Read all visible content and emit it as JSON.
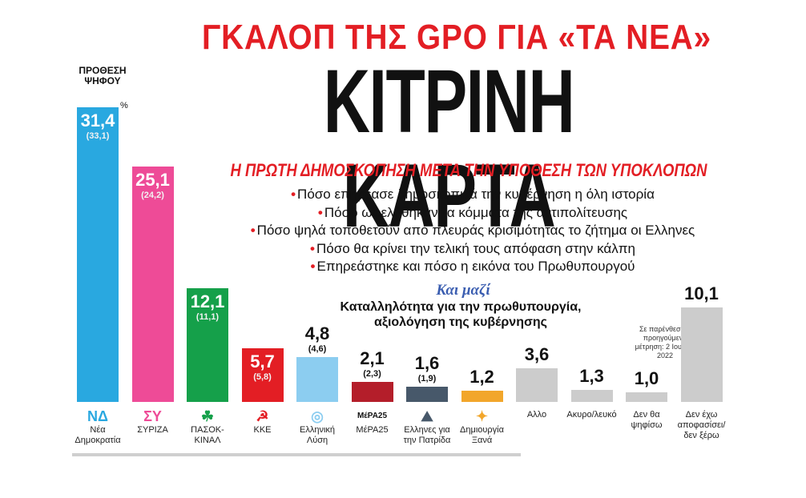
{
  "header": {
    "top_title": "ΓΚΑΛΟΠ ΤΗΣ GPO ΓΙΑ «ΤΑ ΝΕΑ»",
    "main_title": "ΚΙΤΡΙΝΗ ΚΑΡΤΑ",
    "subtitle": "Η ΠΡΩΤΗ ΔΗΜΟΣΚΟΠΗΣΗ ΜΕΤΑ ΤΗΝ ΥΠΟΘΕΣΗ ΤΩΝ ΥΠΟΚΛΟΠΩΝ",
    "intent_label": "ΠΡΟΘΕΣΗ ΨΗΦΟΥ",
    "percent_sign": "%"
  },
  "bullets": [
    "Πόσο επηρέασε δημοσκοπικά την κυβέρνηση η όλη ιστορία",
    "Πόσο ωφελήθηκαν τα κόμματα της αντιπολίτευσης",
    "Πόσο ψηλά τοποθετούν από πλευράς κρισιμότητας το ζήτημα οι Ελληνες",
    "Πόσο θα κρίνει την τελική τους απόφαση στην κάλπη",
    "Επηρεάστηκε και πόσο η εικόνα του Πρωθυπουργού"
  ],
  "together": {
    "label": "Και μαζί",
    "line1": "Καταλληλότητα για την πρωθυπουργία,",
    "line2": "αξιολόγηση της κυβέρνησης"
  },
  "note": "Σε παρένθεση η προηγούμενη μέτρηση: 2 Ιουλίου 2022",
  "colors": {
    "accent_red": "#e31e24",
    "nd": "#29a8e0",
    "syriza": "#ee4b97",
    "pasok": "#15a04a",
    "kke": "#e31e24",
    "el": "#8ccdf0",
    "mera25": "#b41e2a",
    "patrida": "#47586a",
    "dimiourgia": "#f2a62b",
    "other": "#cccccc"
  },
  "logos": {
    "nd": "ΝΔ",
    "syriza": "ΣΥ",
    "pasok": "☘",
    "kke": "☭",
    "el": "◎",
    "mera25": "ΜέΡΑ25",
    "patrida": "⛰",
    "dimiourgia": "✦"
  },
  "chart_data": {
    "type": "bar",
    "title": "ΚΙΤΡΙΝΗ ΚΑΡΤΑ",
    "ylabel": "ΠΡΟΘΕΣΗ ΨΗΦΟΥ",
    "unit": "%",
    "ylim": [
      0,
      31.4
    ],
    "categories": [
      "Νέα Δημοκρατία",
      "ΣΥΡΙΖΑ",
      "ΠΑΣΟΚ-ΚΙΝΑΛ",
      "ΚΚΕ",
      "Ελληνική Λύση",
      "ΜέΡΑ25",
      "Ελληνες για την Πατρίδα",
      "Δημιουργία Ξανά",
      "Αλλο",
      "Ακυρο/λευκό",
      "Δεν θα ψηφίσω",
      "Δεν έχω αποφασίσει/δεν ξέρω"
    ],
    "values": [
      "31,4",
      "25,1",
      "12,1",
      "5,7",
      "4,8",
      "2,1",
      "1,6",
      "1,2",
      "3,6",
      "1,3",
      "1,0",
      "10,1"
    ],
    "numeric_values": [
      31.4,
      25.1,
      12.1,
      5.7,
      4.8,
      2.1,
      1.6,
      1.2,
      3.6,
      1.3,
      1.0,
      10.1
    ],
    "previous": [
      "(33,1)",
      "(24,2)",
      "(11,1)",
      "(5,8)",
      "(4,6)",
      "(2,3)",
      "(1,9)",
      "",
      "",
      "",
      "",
      ""
    ]
  }
}
